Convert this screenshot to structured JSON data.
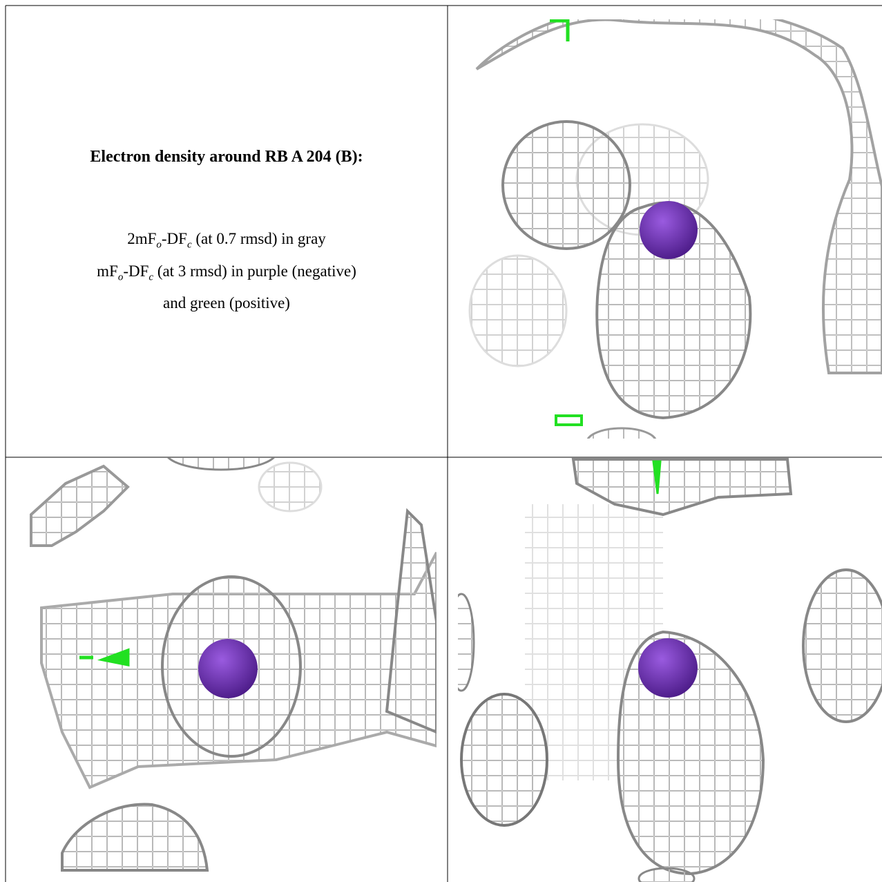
{
  "title": "Electron density around RB A 204 (B):",
  "legend_lines": [
    [
      "2mF",
      "o",
      "-DF",
      "c",
      " (at 0.7 rmsd) in gray"
    ],
    [
      "mF",
      "o",
      "-DF",
      "c",
      " (at 3 rmsd) in purple (negative)"
    ],
    [
      "and green (positive)"
    ]
  ]
}
